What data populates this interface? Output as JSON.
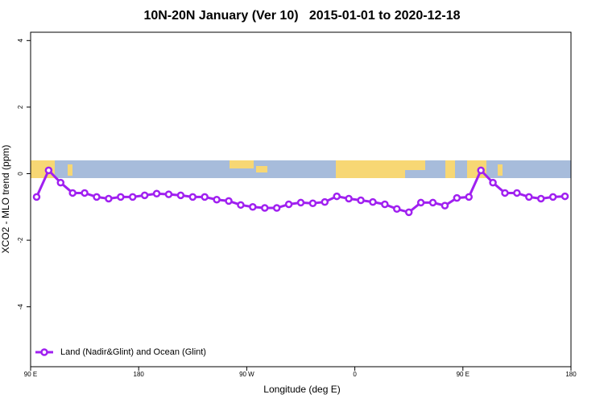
{
  "chart_data": {
    "type": "line",
    "title": "10N-20N January (Ver 10)   2015-01-01 to 2020-12-18",
    "xlabel": "Longitude (deg E)",
    "ylabel": "XCO2 - MLO trend (ppm)",
    "x": [
      95,
      105,
      115,
      125,
      135,
      145,
      155,
      165,
      175,
      185,
      195,
      205,
      215,
      225,
      235,
      245,
      255,
      265,
      275,
      285,
      295,
      305,
      315,
      325,
      335,
      345,
      355,
      365,
      375,
      385,
      395,
      405,
      415,
      425,
      435,
      445,
      455,
      465,
      475,
      485,
      495,
      505,
      515,
      525,
      535
    ],
    "series": [
      {
        "name": "Land (Nadir&Glint) and Ocean (Glint)",
        "color": "#a020f0",
        "values": [
          -0.7,
          0.1,
          -0.27,
          -0.58,
          -0.58,
          -0.7,
          -0.75,
          -0.7,
          -0.7,
          -0.65,
          -0.6,
          -0.62,
          -0.65,
          -0.7,
          -0.7,
          -0.78,
          -0.82,
          -0.94,
          -1.0,
          -1.03,
          -1.03,
          -0.92,
          -0.87,
          -0.89,
          -0.85,
          -0.68,
          -0.75,
          -0.8,
          -0.85,
          -0.92,
          -1.06,
          -1.16,
          -0.87,
          -0.87,
          -0.96,
          -0.73,
          -0.7,
          0.1,
          -0.27,
          -0.58,
          -0.58,
          -0.7,
          -0.75,
          -0.7,
          -0.68
        ]
      }
    ],
    "xlim": [
      90,
      540
    ],
    "xticks": [
      {
        "value": 90,
        "label": "90 E"
      },
      {
        "value": 180,
        "label": "180"
      },
      {
        "value": 270,
        "label": "90 W"
      },
      {
        "value": 360,
        "label": "0"
      },
      {
        "value": 450,
        "label": "90 E"
      },
      {
        "value": 540,
        "label": "180"
      }
    ],
    "ylim": [
      -5.8,
      4.25
    ],
    "yticks": [
      -4,
      -2,
      0,
      2,
      4
    ],
    "legend": "bottom-left"
  }
}
